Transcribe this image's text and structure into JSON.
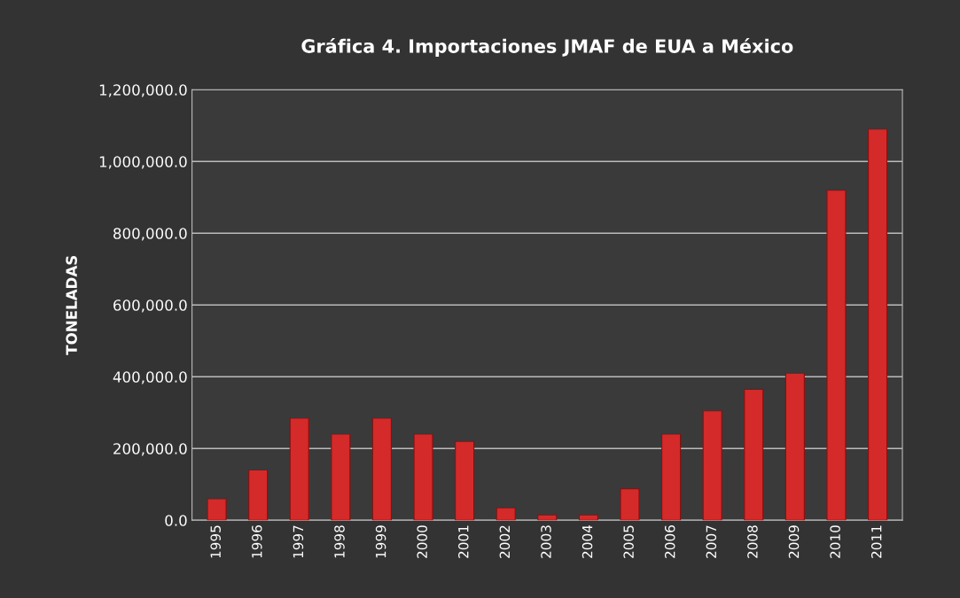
{
  "chart_data": {
    "type": "bar",
    "title": "Gráfica 4. Importaciones JMAF de EUA a México",
    "ylabel": "TONELADAS",
    "categories": [
      "1995",
      "1996",
      "1997",
      "1998",
      "1999",
      "2000",
      "2001",
      "2002",
      "2003",
      "2004",
      "2005",
      "2006",
      "2007",
      "2008",
      "2009",
      "2010",
      "2011"
    ],
    "values": [
      60000,
      140000,
      285000,
      240000,
      285000,
      240000,
      220000,
      35000,
      15000,
      15000,
      88000,
      240000,
      305000,
      365000,
      410000,
      920000,
      1090000
    ],
    "color": "#d42a2a",
    "ylim": [
      0,
      1200000
    ],
    "yticks": [
      {
        "value": 0,
        "label": "0.0"
      },
      {
        "value": 200000,
        "label": "200,000.0"
      },
      {
        "value": 400000,
        "label": "400,000.0"
      },
      {
        "value": 600000,
        "label": "600,000.0"
      },
      {
        "value": 800000,
        "label": "800,000.0"
      },
      {
        "value": 1000000,
        "label": "1,000,000.0"
      },
      {
        "value": 1200000,
        "label": "1,200,000.0"
      }
    ],
    "grid": "y"
  }
}
